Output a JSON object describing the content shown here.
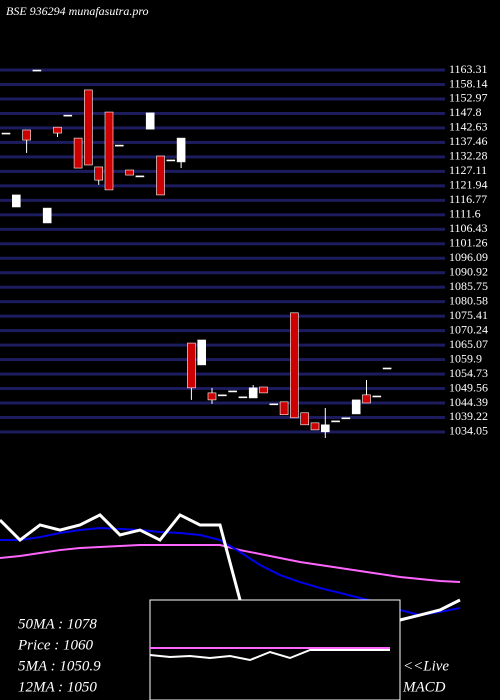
{
  "chart_data": {
    "type": "candlestick",
    "title": "BSE 936294 munafasutra.pro",
    "ylim": [
      1025,
      1175
    ],
    "yticks": [
      1163.31,
      1158.14,
      1152.97,
      1147.8,
      1142.63,
      1137.46,
      1132.28,
      1127.11,
      1121.94,
      1116.77,
      1111.6,
      1106.43,
      1101.26,
      1096.09,
      1090.92,
      1085.75,
      1080.58,
      1075.41,
      1070.24,
      1065.07,
      1059.9,
      1054.73,
      1049.56,
      1044.39,
      1039.22,
      1034.05
    ],
    "grid": true,
    "up_color": "#ffffff",
    "down_color": "#cc0000",
    "grid_color": "#1c1c5e",
    "open": [
      1140.8,
      1114.4,
      1141.9,
      1163.3,
      1108.7,
      1142.9,
      1147.2,
      1139.0,
      1156.2,
      1128.7,
      1148.3,
      1136.5,
      1127.6,
      1125.5,
      1142.2,
      1132.6,
      1131.2,
      1130.5,
      1065.8,
      1058.0,
      1048.0,
      1047.3,
      1048.7,
      1046.6,
      1046.2,
      1050.1,
      1044.1,
      1044.8,
      1076.6,
      1040.9,
      1037.3,
      1034.1,
      1038.0,
      1039.1,
      1040.5,
      1047.3,
      1046.9,
      1056.9
    ],
    "high": [
      1140.8,
      1118.7,
      1141.9,
      1163.3,
      1114.0,
      1142.9,
      1147.2,
      1139.0,
      1156.2,
      1128.7,
      1148.3,
      1136.5,
      1127.6,
      1125.5,
      1148.0,
      1132.6,
      1131.2,
      1139.0,
      1065.8,
      1066.9,
      1049.8,
      1047.3,
      1048.7,
      1046.6,
      1050.8,
      1050.1,
      1044.1,
      1044.8,
      1076.6,
      1040.9,
      1037.3,
      1042.6,
      1038.0,
      1039.1,
      1045.5,
      1052.6,
      1046.9,
      1056.9
    ],
    "low": [
      1140.8,
      1114.4,
      1133.7,
      1163.3,
      1108.7,
      1139.4,
      1147.2,
      1128.3,
      1129.4,
      1122.3,
      1120.5,
      1136.5,
      1125.8,
      1125.5,
      1142.2,
      1118.7,
      1131.2,
      1128.3,
      1045.5,
      1058.0,
      1044.1,
      1047.3,
      1048.7,
      1046.6,
      1046.2,
      1048.0,
      1044.1,
      1040.2,
      1039.1,
      1036.6,
      1034.8,
      1031.9,
      1038.0,
      1039.1,
      1040.5,
      1044.4,
      1046.9,
      1056.9
    ],
    "close": [
      1140.8,
      1118.7,
      1138.3,
      1163.3,
      1114.0,
      1140.8,
      1147.2,
      1128.3,
      1129.4,
      1124.0,
      1120.5,
      1136.5,
      1125.8,
      1125.5,
      1148.0,
      1118.7,
      1131.2,
      1139.0,
      1049.8,
      1066.9,
      1045.5,
      1047.3,
      1048.7,
      1046.6,
      1049.8,
      1048.0,
      1044.1,
      1040.2,
      1039.1,
      1036.6,
      1034.8,
      1036.6,
      1038.0,
      1039.1,
      1045.5,
      1044.4,
      1046.9,
      1056.9
    ],
    "ma_panel": {
      "type": "line",
      "ylim": [
        0,
        100
      ],
      "xlim": [
        0,
        500
      ],
      "x": [
        0,
        20,
        40,
        60,
        80,
        100,
        120,
        140,
        160,
        180,
        200,
        220,
        240,
        260,
        280,
        300,
        320,
        340,
        360,
        380,
        400,
        420,
        440,
        460
      ],
      "series": [
        {
          "color": "#ff66ff",
          "values": [
            47.7,
            49.2,
            51.5,
            53.8,
            55.4,
            56.2,
            56.9,
            57.7,
            57.7,
            57.7,
            57.7,
            57.7,
            53.8,
            50.8,
            47.7,
            44.6,
            42.3,
            40,
            37.7,
            35.4,
            33.1,
            31.5,
            30,
            29.2
          ]
        },
        {
          "color": "#0000ee",
          "values": [
            61.5,
            61.5,
            63.8,
            66.9,
            69.2,
            70.8,
            70,
            69.2,
            67.7,
            66.9,
            65.4,
            61.5,
            52.3,
            42.3,
            34.6,
            29.2,
            24.6,
            20.8,
            16.9,
            13.1,
            7.7,
            3.8,
            6.2,
            9.2
          ]
        },
        {
          "color": "#ffffff",
          "values": [
            76.9,
            61.5,
            73.1,
            69.2,
            73.1,
            80.8,
            65.4,
            69.2,
            61.5,
            80.8,
            73.1,
            73.1,
            15.4,
            null,
            null,
            null,
            null,
            null,
            null,
            null,
            0,
            3.8,
            7.7,
            15.4
          ]
        }
      ]
    },
    "macd_panel": {
      "type": "line",
      "ylim": [
        0,
        100
      ],
      "xlim": [
        150,
        400
      ],
      "x": [
        150,
        170,
        190,
        210,
        230,
        250,
        270,
        290,
        310,
        330,
        350,
        370,
        390
      ],
      "series": [
        {
          "color": "#ff66ff",
          "values": [
            52,
            52,
            52,
            52,
            52,
            52,
            52,
            52,
            52,
            52,
            52,
            52,
            52
          ]
        },
        {
          "color": "#ffffff",
          "values": [
            45,
            43,
            44,
            42,
            44,
            40,
            48,
            42,
            50,
            50,
            50,
            50,
            50
          ]
        }
      ]
    },
    "info": [
      "50MA : 1078",
      "Price : 1060",
      "5MA : 1050.9",
      "12MA : 1050"
    ],
    "macd_label": [
      "<<Live",
      "MACD"
    ]
  }
}
